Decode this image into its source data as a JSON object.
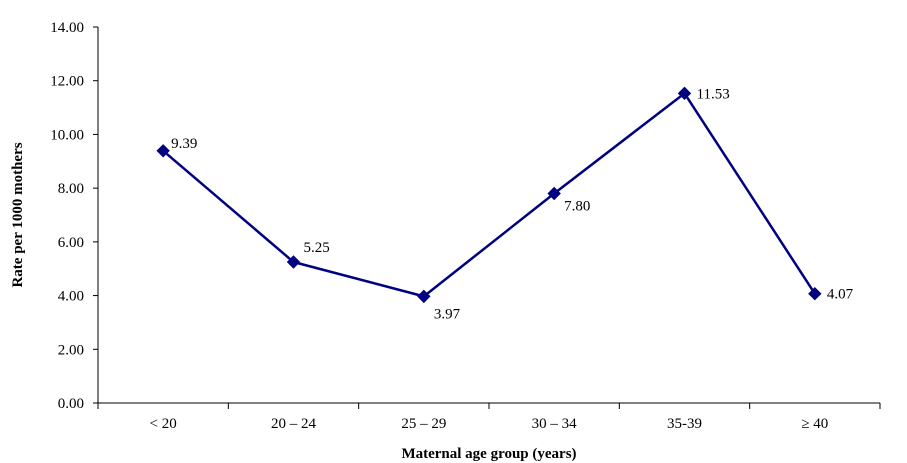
{
  "chart_data": {
    "type": "line",
    "xlabel": "Maternal age group (years)",
    "ylabel": "Rate per 1000 mothers",
    "categories": [
      "< 20",
      "20 – 24",
      "25 – 29",
      "30 – 34",
      "35-39",
      "≥ 40"
    ],
    "series": [
      {
        "values": [
          9.39,
          5.25,
          3.97,
          7.8,
          11.53,
          4.07
        ],
        "labels": [
          "9.39",
          "5.25",
          "3.97",
          "7.80",
          "11.53",
          "4.07"
        ]
      }
    ],
    "ylim": [
      0,
      14
    ],
    "yticks": [
      "0.00",
      "2.00",
      "4.00",
      "6.00",
      "8.00",
      "10.00",
      "12.00",
      "14.00"
    ],
    "grid": false,
    "legend": "none",
    "colors": {
      "series": "#000080",
      "axis": "#000000"
    }
  }
}
